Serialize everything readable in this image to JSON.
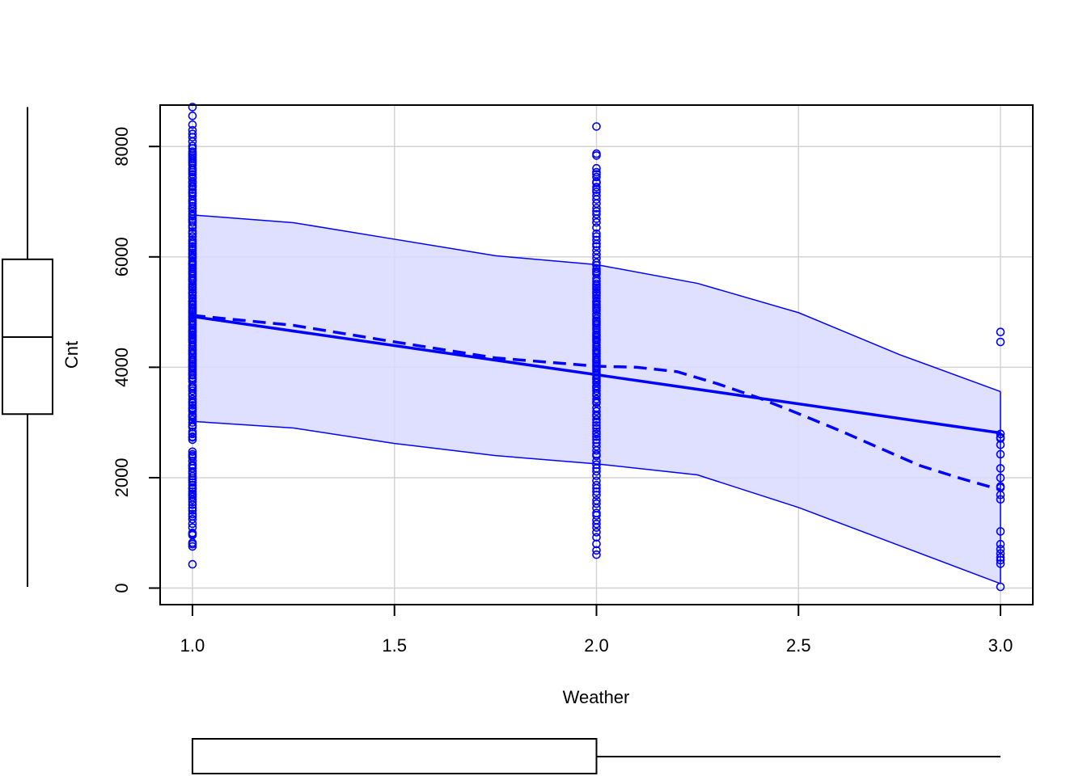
{
  "chart_data": {
    "type": "scatter",
    "xlabel": "Weather",
    "ylabel": "Cnt",
    "xlim": [
      0.92,
      3.08
    ],
    "ylim": [
      -300,
      8750
    ],
    "x_ticks": [
      1.0,
      1.5,
      2.0,
      2.5,
      3.0
    ],
    "x_tick_labels": [
      "1.0",
      "1.5",
      "2.0",
      "2.5",
      "3.0"
    ],
    "y_ticks": [
      0,
      2000,
      4000,
      6000,
      8000
    ],
    "y_tick_labels": [
      "0",
      "2000",
      "4000",
      "6000",
      "8000"
    ],
    "grid": true,
    "colors": {
      "points": "#0000ff",
      "band_fill": "#d9d9ff",
      "lines": "#0000ff",
      "grid": "#d3d3d3"
    },
    "groups": [
      {
        "x": 1,
        "values": [
          431,
          754,
          795,
          822,
          959,
          981,
          1000,
          1096,
          1167,
          1248,
          1301,
          1341,
          1406,
          1450,
          1510,
          1562,
          1605,
          1650,
          1685,
          1708,
          1746,
          1796,
          1817,
          1865,
          1913,
          1951,
          1985,
          2027,
          2077,
          2114,
          2169,
          2210,
          2236,
          2302,
          2368,
          2395,
          2424,
          2471,
          2689,
          2729,
          2743,
          2792,
          2832,
          2917,
          2947,
          2999,
          3053,
          3095,
          3115,
          3141,
          3204,
          3239,
          3267,
          3310,
          3351,
          3376,
          3422,
          3485,
          3520,
          3574,
          3614,
          3644,
          3663,
          3744,
          3784,
          3811,
          3855,
          3873,
          3907,
          3944,
          3974,
          4010,
          4035,
          4066,
          4098,
          4128,
          4150,
          4191,
          4231,
          4258,
          4294,
          4322,
          4362,
          4401,
          4451,
          4486,
          4507,
          4539,
          4570,
          4595,
          4629,
          4649,
          4677,
          4713,
          4758,
          4785,
          4817,
          4845,
          4881,
          4905,
          4932,
          4966,
          4996,
          5020,
          5047,
          5084,
          5119,
          5146,
          5180,
          5202,
          5255,
          5298,
          5336,
          5362,
          5409,
          5445,
          5478,
          5511,
          5558,
          5585,
          5611,
          5648,
          5686,
          5713,
          5740,
          5780,
          5805,
          5847,
          5870,
          5895,
          5923,
          5976,
          6005,
          6043,
          6073,
          6118,
          6153,
          6192,
          6234,
          6269,
          6304,
          6370,
          6421,
          6460,
          6530,
          6570,
          6624,
          6660,
          6691,
          6734,
          6772,
          6824,
          6871,
          6883,
          6917,
          6966,
          7006,
          7040,
          7105,
          7148,
          7175,
          7216,
          7264,
          7290,
          7338,
          7363,
          7421,
          7446,
          7498,
          7534,
          7572,
          7605,
          7665,
          7702,
          7733,
          7767,
          7804,
          7836,
          7870,
          7907,
          7965,
          8009,
          8090,
          8167,
          8227,
          8294,
          8395,
          8555,
          8714
        ]
      },
      {
        "x": 2,
        "values": [
          605,
          683,
          801,
          920,
          1013,
          1096,
          1162,
          1230,
          1317,
          1360,
          1450,
          1529,
          1589,
          1685,
          1746,
          1807,
          1865,
          1944,
          2034,
          2114,
          2169,
          2236,
          2302,
          2395,
          2424,
          2493,
          2566,
          2633,
          2689,
          2743,
          2792,
          2832,
          2895,
          2947,
          2999,
          3053,
          3115,
          3141,
          3204,
          3267,
          3351,
          3376,
          3422,
          3485,
          3520,
          3574,
          3614,
          3644,
          3663,
          3717,
          3744,
          3784,
          3811,
          3855,
          3873,
          3907,
          3944,
          3974,
          4010,
          4035,
          4066,
          4098,
          4128,
          4150,
          4191,
          4231,
          4258,
          4294,
          4322,
          4362,
          4401,
          4451,
          4486,
          4507,
          4539,
          4570,
          4595,
          4629,
          4677,
          4713,
          4758,
          4785,
          4817,
          4845,
          4881,
          4932,
          4966,
          5020,
          5047,
          5084,
          5119,
          5146,
          5180,
          5202,
          5255,
          5298,
          5336,
          5362,
          5409,
          5445,
          5478,
          5511,
          5558,
          5611,
          5686,
          5713,
          5740,
          5780,
          5847,
          5895,
          5976,
          6043,
          6118,
          6192,
          6234,
          6304,
          6370,
          6421,
          6530,
          6624,
          6691,
          6772,
          6824,
          6883,
          6966,
          7040,
          7105,
          7175,
          7216,
          7264,
          7338,
          7363,
          7446,
          7498,
          7534,
          7605,
          7836,
          7870,
          8362
        ]
      },
      {
        "x": 3,
        "values": [
          22,
          441,
          506,
          555,
          627,
          705,
          795,
          1027,
          1607,
          1688,
          1817,
          1842,
          1996,
          2169,
          2424,
          2595,
          2710,
          2732,
          2792,
          4459,
          4639
        ]
      }
    ],
    "band": {
      "x": [
        1.0,
        1.25,
        1.5,
        1.75,
        2.0,
        2.25,
        2.5,
        2.75,
        3.0
      ],
      "upper": [
        6760,
        6620,
        6320,
        6020,
        5860,
        5520,
        4990,
        4230,
        3560
      ],
      "lower": [
        3020,
        2900,
        2620,
        2400,
        2250,
        2050,
        1460,
        770,
        80
      ]
    },
    "linear_fit": {
      "x": [
        1.0,
        3.0
      ],
      "y": [
        4920,
        2810
      ]
    },
    "smooth_fit": {
      "x": [
        1.0,
        1.25,
        1.5,
        1.75,
        2.0,
        2.1,
        2.2,
        2.3,
        2.4,
        2.5,
        2.6,
        2.7,
        2.8,
        2.9,
        3.0
      ],
      "y": [
        4940,
        4760,
        4460,
        4170,
        4020,
        4000,
        3920,
        3700,
        3450,
        3160,
        2860,
        2540,
        2220,
        1990,
        1780
      ]
    },
    "boxplot_x": {
      "whisker_low": 1,
      "q1": 1,
      "median": 1,
      "q3": 2,
      "whisker_high": 3
    },
    "boxplot_y": {
      "whisker_low": 22,
      "q1": 3152,
      "median": 4548,
      "q3": 5956,
      "whisker_high": 8714
    }
  }
}
